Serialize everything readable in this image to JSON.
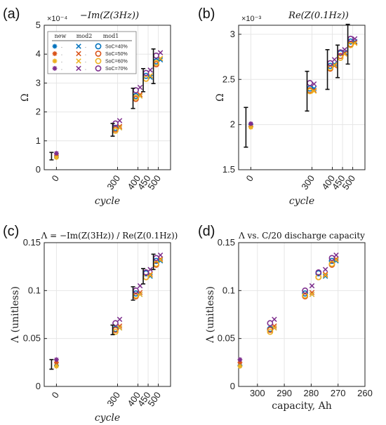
{
  "legend": {
    "headers": [
      "new",
      "mod2",
      "mod1"
    ],
    "entries": [
      "SoC=40%",
      "SoC=50%",
      "SoC=60%",
      "SoC=70%"
    ],
    "colors": [
      "#0072BD",
      "#D95319",
      "#EDB120",
      "#7E2F8E"
    ]
  },
  "chart_data": [
    {
      "panel": "(a)",
      "type": "scatter",
      "title": "−Im(Z(3Hz))",
      "xlabel": "cycle",
      "ylabel": "Ω",
      "exponent": "×10⁻⁴",
      "xlim": [
        -60,
        560
      ],
      "ylim": [
        0,
        5
      ],
      "xticks": [
        0,
        300,
        400,
        450,
        500
      ],
      "yticks": [
        0,
        1,
        2,
        3,
        4,
        5
      ],
      "series": [
        {
          "name": "new",
          "marker": "asterisk",
          "x": [
            0,
            0,
            0,
            0
          ],
          "y": [
            0.44,
            0.5,
            0.42,
            0.57
          ]
        },
        {
          "name": "mod2",
          "marker": "x",
          "x": [
            300,
            300,
            300,
            300,
            400,
            400,
            400,
            400,
            450,
            450,
            450,
            450,
            500,
            500,
            500,
            500
          ],
          "y": [
            1.45,
            1.5,
            1.45,
            1.7,
            2.55,
            2.6,
            2.55,
            2.85,
            3.2,
            3.25,
            3.25,
            3.45,
            3.8,
            3.85,
            3.85,
            4.05
          ]
        },
        {
          "name": "mod1",
          "marker": "circle",
          "x": [
            300,
            300,
            300,
            300,
            400,
            400,
            400,
            400,
            450,
            450,
            450,
            450,
            500,
            500,
            500,
            500
          ],
          "y": [
            1.45,
            1.4,
            1.35,
            1.6,
            2.55,
            2.45,
            2.5,
            2.75,
            3.25,
            3.15,
            3.15,
            3.35,
            3.75,
            3.65,
            3.7,
            3.95
          ]
        },
        {
          "name": "error bars",
          "marker": "errorbar",
          "x": [
            0,
            300,
            400,
            450,
            500
          ],
          "y": [
            0.47,
            1.38,
            2.47,
            3.1,
            3.58
          ],
          "err": [
            0.13,
            0.22,
            0.35,
            0.4,
            0.6
          ]
        }
      ]
    },
    {
      "panel": "(b)",
      "type": "scatter",
      "title": "Re(Z(0.1Hz))",
      "xlabel": "cycle",
      "ylabel": "Ω",
      "exponent": "×10⁻³",
      "xlim": [
        -60,
        560
      ],
      "ylim": [
        1.5,
        3.1
      ],
      "xticks": [
        0,
        300,
        400,
        450,
        500
      ],
      "yticks": [
        1.5,
        2,
        2.5,
        3
      ],
      "series": [
        {
          "name": "new",
          "marker": "asterisk",
          "x": [
            0,
            0,
            0,
            0
          ],
          "y": [
            2.0,
            1.98,
            1.97,
            2.01
          ]
        },
        {
          "name": "mod2",
          "marker": "x",
          "x": [
            300,
            300,
            300,
            300,
            400,
            400,
            400,
            400,
            450,
            450,
            450,
            450,
            500,
            500,
            500,
            500
          ],
          "y": [
            2.4,
            2.38,
            2.37,
            2.45,
            2.67,
            2.65,
            2.66,
            2.72,
            2.8,
            2.79,
            2.78,
            2.83,
            2.92,
            2.91,
            2.9,
            2.95
          ]
        },
        {
          "name": "mod1",
          "marker": "circle",
          "x": [
            300,
            300,
            300,
            300,
            400,
            400,
            400,
            400,
            450,
            450,
            450,
            450,
            500,
            500,
            500,
            500
          ],
          "y": [
            2.4,
            2.38,
            2.37,
            2.46,
            2.65,
            2.62,
            2.63,
            2.68,
            2.79,
            2.76,
            2.74,
            2.8,
            2.92,
            2.89,
            2.88,
            2.95
          ]
        },
        {
          "name": "error bars",
          "marker": "errorbar",
          "x": [
            0,
            300,
            400,
            450,
            500
          ],
          "y": [
            1.97,
            2.37,
            2.61,
            2.7,
            2.89
          ],
          "err": [
            0.22,
            0.22,
            0.22,
            0.18,
            0.22
          ]
        }
      ]
    },
    {
      "panel": "(c)",
      "type": "scatter",
      "title": "Λ = −Im(Z(3Hz)) / Re(Z(0.1Hz))",
      "xlabel": "cycle",
      "ylabel": "Λ (unitless)",
      "xlim": [
        -60,
        560
      ],
      "ylim": [
        0,
        0.15
      ],
      "xticks": [
        0,
        300,
        400,
        450,
        500
      ],
      "yticks": [
        0,
        0.05,
        0.1,
        0.15
      ],
      "series": [
        {
          "name": "new",
          "marker": "asterisk",
          "x": [
            0,
            0,
            0,
            0
          ],
          "y": [
            0.022,
            0.025,
            0.021,
            0.028
          ]
        },
        {
          "name": "mod2",
          "marker": "x",
          "x": [
            300,
            300,
            300,
            300,
            400,
            400,
            400,
            400,
            450,
            450,
            450,
            450,
            500,
            500,
            500,
            500
          ],
          "y": [
            0.061,
            0.063,
            0.061,
            0.07,
            0.096,
            0.098,
            0.096,
            0.105,
            0.115,
            0.117,
            0.116,
            0.122,
            0.131,
            0.133,
            0.132,
            0.137
          ]
        },
        {
          "name": "mod1",
          "marker": "circle",
          "x": [
            300,
            300,
            300,
            300,
            400,
            400,
            400,
            400,
            450,
            450,
            450,
            450,
            500,
            500,
            500,
            500
          ],
          "y": [
            0.06,
            0.059,
            0.057,
            0.066,
            0.097,
            0.094,
            0.095,
            0.1,
            0.118,
            0.114,
            0.114,
            0.119,
            0.131,
            0.127,
            0.128,
            0.134
          ]
        },
        {
          "name": "error bars",
          "marker": "errorbar",
          "x": [
            0,
            300,
            400,
            450,
            500
          ],
          "y": [
            0.023,
            0.059,
            0.097,
            0.115,
            0.13
          ],
          "err": [
            0.005,
            0.005,
            0.007,
            0.008,
            0.008
          ]
        }
      ]
    },
    {
      "panel": "(d)",
      "type": "scatter",
      "title": "Λ vs. C/20 discharge capacity",
      "xlabel": "capacity, Ah",
      "ylabel": "Λ (unitless)",
      "xlim": [
        307,
        260
      ],
      "ylim": [
        0,
        0.15
      ],
      "xticks": [
        300,
        290,
        280,
        270,
        260
      ],
      "yticks": [
        0,
        0.05,
        0.1,
        0.15
      ],
      "series": [
        {
          "name": "new",
          "marker": "asterisk",
          "x": [
            306.5,
            306.5,
            306.5,
            306.5
          ],
          "y": [
            0.022,
            0.025,
            0.021,
            0.028
          ]
        },
        {
          "name": "mod2",
          "marker": "x",
          "x": [
            294.5,
            294.5,
            294.5,
            294.5,
            280.5,
            280.5,
            280.5,
            280.5,
            275.5,
            275.5,
            275.5,
            275.5,
            271.5,
            271.5,
            271.5,
            271.5
          ],
          "y": [
            0.061,
            0.063,
            0.061,
            0.07,
            0.096,
            0.098,
            0.096,
            0.105,
            0.115,
            0.117,
            0.116,
            0.122,
            0.131,
            0.133,
            0.132,
            0.137
          ]
        },
        {
          "name": "mod1",
          "marker": "circle",
          "x": [
            294.5,
            294.5,
            294.5,
            294.5,
            281.5,
            281.5,
            281.5,
            281.5,
            276.5,
            276.5,
            276.5,
            276.5,
            271.5,
            271.5,
            271.5,
            271.5
          ],
          "y": [
            0.06,
            0.059,
            0.057,
            0.066,
            0.097,
            0.094,
            0.095,
            0.1,
            0.118,
            0.114,
            0.114,
            0.119,
            0.131,
            0.127,
            0.128,
            0.134
          ]
        }
      ]
    }
  ]
}
